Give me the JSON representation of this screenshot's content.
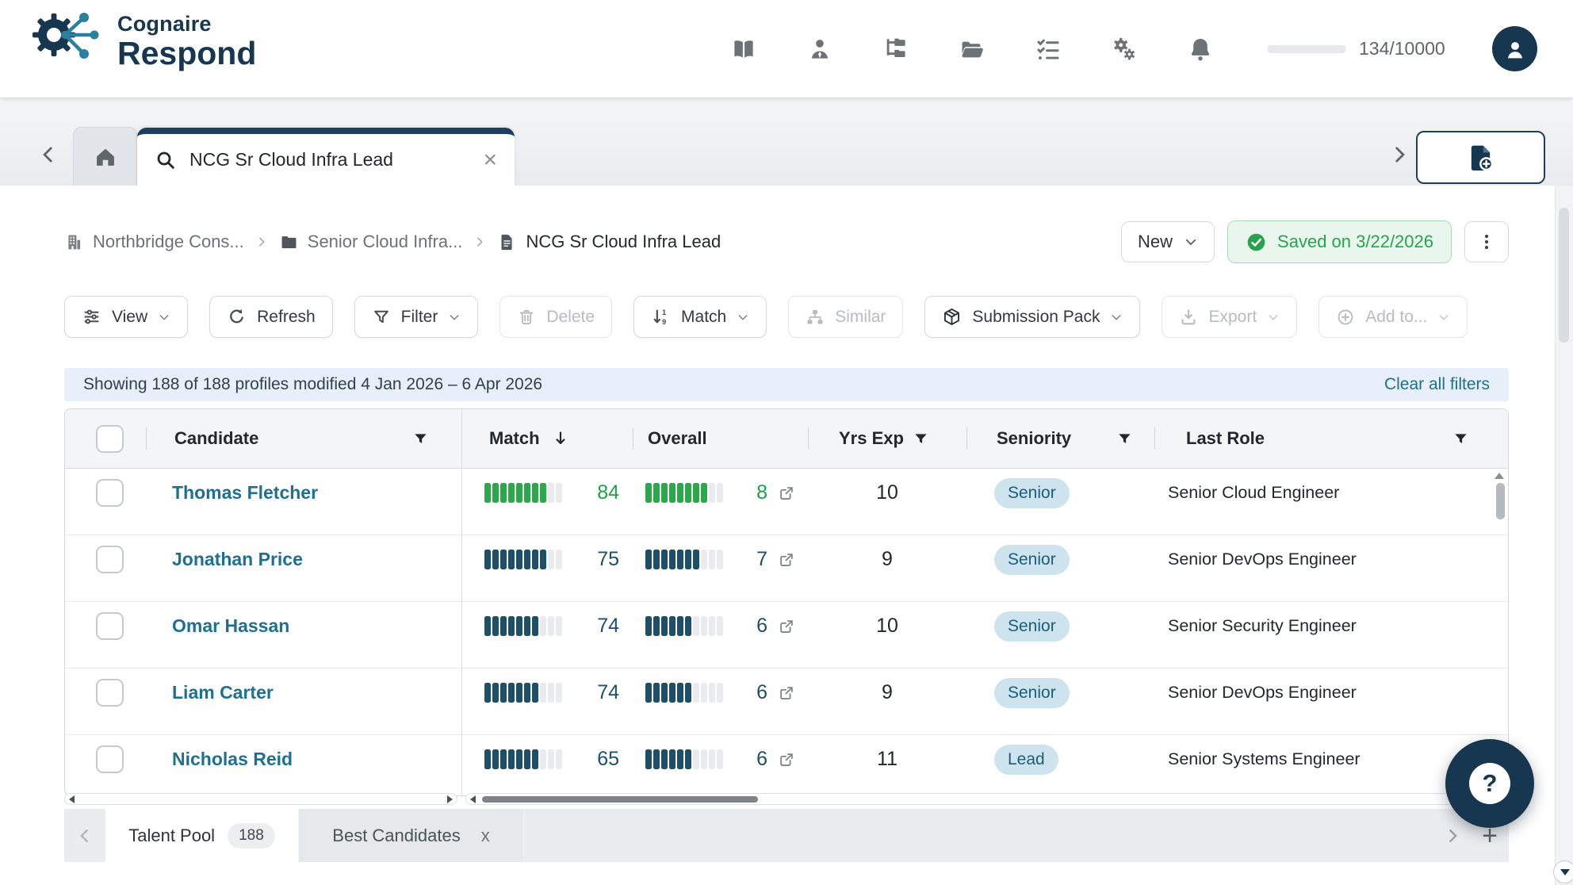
{
  "brand": {
    "line1": "Cognaire",
    "line2": "Respond"
  },
  "header": {
    "nav_icons": [
      "library-icon",
      "candidates-icon",
      "org-tree-icon",
      "projects-icon",
      "tasks-icon",
      "settings-icon",
      "notifications-icon"
    ],
    "usage": {
      "used": 134,
      "total": 10000,
      "label": "134/10000",
      "percent": 1.34
    }
  },
  "tabstrip": {
    "active_tab_title": "NCG Sr Cloud Infra Lead"
  },
  "breadcrumb": {
    "items": [
      {
        "icon": "building-icon",
        "label": "Northbridge Cons..."
      },
      {
        "icon": "folder-icon",
        "label": "Senior Cloud Infra..."
      },
      {
        "icon": "document-icon",
        "label": "NCG Sr Cloud Infra Lead"
      }
    ]
  },
  "actions": {
    "new_label": "New",
    "saved_label": "Saved on 3/22/2026"
  },
  "toolbar": {
    "buttons": [
      {
        "label": "View",
        "icon": "sliders-icon",
        "dropdown": true,
        "enabled": true
      },
      {
        "label": "Refresh",
        "icon": "refresh-icon",
        "dropdown": false,
        "enabled": true
      },
      {
        "label": "Filter",
        "icon": "funnel-icon",
        "dropdown": true,
        "enabled": true
      },
      {
        "label": "Delete",
        "icon": "trash-icon",
        "dropdown": false,
        "enabled": false
      },
      {
        "label": "Match",
        "icon": "sort-numeric-icon",
        "dropdown": true,
        "enabled": true
      },
      {
        "label": "Similar",
        "icon": "sitemap-icon",
        "dropdown": false,
        "enabled": false
      },
      {
        "label": "Submission Pack",
        "icon": "box-icon",
        "dropdown": true,
        "enabled": true
      },
      {
        "label": "Export",
        "icon": "download-icon",
        "dropdown": true,
        "enabled": false
      },
      {
        "label": "Add to...",
        "icon": "plus-circle-icon",
        "dropdown": true,
        "enabled": false
      }
    ]
  },
  "filter_bar": {
    "summary": "Showing 188 of 188 profiles modified 4 Jan 2026 – 6 Apr 2026",
    "clear_label": "Clear all filters"
  },
  "table": {
    "columns": [
      {
        "label": "Candidate",
        "filter": true
      },
      {
        "label": "Match",
        "sort": "desc"
      },
      {
        "label": "Overall"
      },
      {
        "label": "Yrs Exp",
        "filter": true
      },
      {
        "label": "Seniority",
        "filter": true
      },
      {
        "label": "Last Role",
        "filter": true
      }
    ],
    "rows": [
      {
        "name": "Thomas Fletcher",
        "match": 84,
        "match_filled": 8,
        "overall": 8,
        "overall_filled": 8,
        "tone": "green",
        "yrs_exp": 10,
        "seniority": "Senior",
        "last_role": "Senior Cloud Engineer"
      },
      {
        "name": "Jonathan Price",
        "match": 75,
        "match_filled": 8,
        "overall": 7,
        "overall_filled": 7,
        "tone": "navy",
        "yrs_exp": 9,
        "seniority": "Senior",
        "last_role": "Senior DevOps Engineer"
      },
      {
        "name": "Omar Hassan",
        "match": 74,
        "match_filled": 7,
        "overall": 6,
        "overall_filled": 6,
        "tone": "navy",
        "yrs_exp": 10,
        "seniority": "Senior",
        "last_role": "Senior Security Engineer"
      },
      {
        "name": "Liam Carter",
        "match": 74,
        "match_filled": 7,
        "overall": 6,
        "overall_filled": 6,
        "tone": "navy",
        "yrs_exp": 9,
        "seniority": "Senior",
        "last_role": "Senior DevOps Engineer"
      },
      {
        "name": "Nicholas Reid",
        "match": 65,
        "match_filled": 7,
        "overall": 6,
        "overall_filled": 6,
        "tone": "navy",
        "yrs_exp": 11,
        "seniority": "Lead",
        "last_role": "Senior Systems Engineer"
      }
    ]
  },
  "sheet_tabs": {
    "tabs": [
      {
        "label": "Talent Pool",
        "badge": "188",
        "active": true
      },
      {
        "label": "Best Candidates",
        "closable": true,
        "active": false
      }
    ]
  },
  "fab": {
    "label": "?"
  },
  "colors": {
    "navy": "#16374f",
    "teal_link": "#1e7091",
    "green": "#2ba84a",
    "bar_navy": "#1d4f6b",
    "pill_bg": "#cde3ed",
    "pill_text": "#1a5e7c",
    "saved_bg": "#e9f6ee",
    "saved_text": "#27a34d",
    "summary_bg": "#e7effa"
  }
}
